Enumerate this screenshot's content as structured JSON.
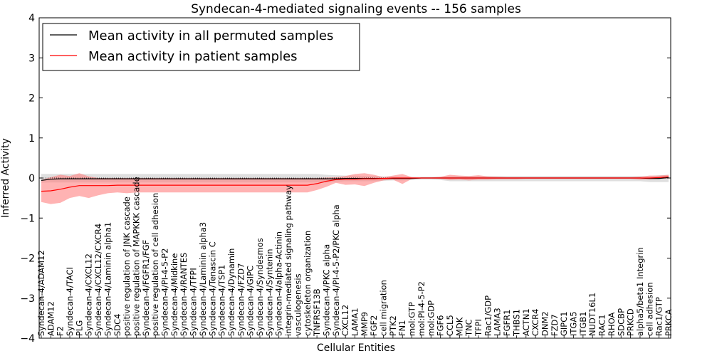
{
  "chart_data": {
    "type": "line",
    "title": "Syndecan-4-mediated signaling events -- 156 samples",
    "xlabel": "Cellular Entities",
    "ylabel": "Inferred Activity",
    "ylim": [
      -4,
      4
    ],
    "yticks": [
      "−4",
      "−3",
      "−2",
      "−1",
      "0",
      "1",
      "2",
      "3",
      "4"
    ],
    "ytick_values": [
      -4,
      -3,
      -2,
      -1,
      0,
      1,
      2,
      3,
      4
    ],
    "legend": {
      "placement": "top-left",
      "entries": [
        {
          "label": "Mean activity in all permuted samples",
          "color": "#000000"
        },
        {
          "label": "Mean activity in patient samples",
          "color": "#ff0000"
        }
      ]
    },
    "categories": [
      "Syndecan-4/ADAM12",
      "ADAM12",
      "F2",
      "Syndecan-4/TACI",
      "PLG",
      "Syndecan-4/CXCL12",
      "Syndecan-4/CXCL12/CXCR4",
      "Syndecan-4/Laminin alpha1",
      "SDC4",
      "positive regulation of JNK cascade",
      "positive regulation of MAPKKK cascade",
      "Syndecan-4/FGFR1/FGF",
      "positive regulation of cell adhesion",
      "Syndecan-4/PI-4-5-P2",
      "Syndecan-4/Midkine",
      "Syndecan-4/RANTES",
      "Syndecan-4/TFPI",
      "Syndecan-4/Laminin alpha3",
      "Syndecan-4/Tenascin C",
      "Syndecan-4/TSP1",
      "Syndecan-4/Dynamin",
      "Syndecan-4/FZD7",
      "Syndecan-4/GIPC",
      "Syndecan-4/Syndesmos",
      "Syndecan-4/Syntenin",
      "Syndecan-4/alpha-Actinin",
      "integrin-mediated signaling pathway",
      "vasculogenesis",
      "cytoskeleton organization",
      "TNFRSF13B",
      "Syndecan-4/PKC alpha",
      "Syndecan-4/PI-4-5-P2/PKC alpha",
      "CXCL12",
      "LAMA1",
      "MMP9",
      "FGF2",
      "cell migration",
      "PTK2",
      "FN1",
      "mol:GTP",
      "mol:PI-4-5-P2",
      "mol:GDP",
      "FGF6",
      "CCL5",
      "MDK",
      "TNC",
      "TFPI",
      "Rac1/GDP",
      "LAMA3",
      "FGFR1",
      "THBS1",
      "ACTN1",
      "CXCR4",
      "DNM2",
      "FZD7",
      "GIPC1",
      "ITGA5",
      "ITGB1",
      "NUDT16L1",
      "RAC1",
      "RHOA",
      "SDCBP",
      "PRKCD",
      "alpha5/beta1 Integrin",
      "cell adhesion",
      "Rac1/GTP",
      "PRKCA"
    ],
    "series": [
      {
        "name": "Mean activity in patient samples",
        "color": "#ff0000",
        "values": [
          -0.33,
          -0.32,
          -0.28,
          -0.23,
          -0.19,
          -0.19,
          -0.19,
          -0.19,
          -0.18,
          -0.18,
          -0.18,
          -0.18,
          -0.18,
          -0.18,
          -0.18,
          -0.18,
          -0.18,
          -0.18,
          -0.18,
          -0.18,
          -0.18,
          -0.18,
          -0.18,
          -0.18,
          -0.18,
          -0.18,
          -0.18,
          -0.18,
          -0.18,
          -0.14,
          -0.08,
          -0.04,
          -0.03,
          -0.03,
          -0.02,
          -0.02,
          -0.01,
          0,
          0,
          0,
          0,
          0,
          0,
          0,
          0,
          0,
          0,
          0,
          0,
          0,
          0,
          0,
          0,
          0,
          0,
          0,
          0,
          0,
          0,
          0,
          0,
          0,
          0,
          0,
          0,
          0.01,
          0.03
        ],
        "lower": [
          -0.6,
          -0.65,
          -0.62,
          -0.5,
          -0.45,
          -0.5,
          -0.43,
          -0.38,
          -0.36,
          -0.38,
          -0.36,
          -0.36,
          -0.36,
          -0.36,
          -0.36,
          -0.36,
          -0.36,
          -0.36,
          -0.36,
          -0.36,
          -0.36,
          -0.36,
          -0.36,
          -0.36,
          -0.36,
          -0.36,
          -0.36,
          -0.36,
          -0.36,
          -0.3,
          -0.22,
          -0.12,
          -0.17,
          -0.16,
          -0.2,
          -0.12,
          -0.06,
          -0.04,
          -0.15,
          -0.02,
          -0.01,
          -0.01,
          -0.02,
          -0.05,
          -0.04,
          -0.06,
          -0.04,
          -0.04,
          -0.03,
          -0.03,
          -0.03,
          -0.02,
          -0.02,
          -0.02,
          -0.02,
          -0.02,
          -0.02,
          -0.02,
          -0.02,
          -0.02,
          -0.02,
          -0.02,
          -0.02,
          -0.04,
          -0.03,
          -0.02,
          -0.01
        ],
        "upper": [
          -0.05,
          0.02,
          0.08,
          0.05,
          0.12,
          0.04,
          0.0,
          0.0,
          0.0,
          0.0,
          0.0,
          0.0,
          0.0,
          0.0,
          0.0,
          0.0,
          0.0,
          0.0,
          0.0,
          0.0,
          0.0,
          0.0,
          0.0,
          0.0,
          0.0,
          0.0,
          0.0,
          0.0,
          0.0,
          0.0,
          0.01,
          0.02,
          0.05,
          0.1,
          0.12,
          0.08,
          0.02,
          0.06,
          0.1,
          0.02,
          0.01,
          0.01,
          0.03,
          0.08,
          0.06,
          0.05,
          0.07,
          0.04,
          0.03,
          0.02,
          0.02,
          0.02,
          0.02,
          0.02,
          0.02,
          0.02,
          0.02,
          0.02,
          0.02,
          0.02,
          0.02,
          0.02,
          0.02,
          0.03,
          0.06,
          0.06,
          0.08
        ]
      },
      {
        "name": "Mean activity in all permuted samples",
        "color": "#000000",
        "values": [
          -0.06,
          -0.03,
          -0.02,
          -0.02,
          -0.02,
          -0.02,
          -0.02,
          -0.02,
          -0.02,
          -0.02,
          -0.02,
          -0.02,
          -0.02,
          -0.02,
          -0.02,
          -0.02,
          -0.02,
          -0.02,
          -0.02,
          -0.02,
          -0.02,
          -0.02,
          -0.02,
          -0.02,
          -0.02,
          -0.02,
          -0.02,
          -0.02,
          -0.02,
          -0.02,
          -0.02,
          -0.02,
          -0.01,
          -0.01,
          -0.01,
          -0.01,
          -0.01,
          -0.01,
          -0.01,
          -0.01,
          0,
          0,
          0,
          0,
          0,
          0,
          0,
          0,
          0,
          0,
          0,
          0,
          0,
          0,
          0,
          0,
          0,
          0,
          0,
          0,
          0,
          0,
          0,
          0,
          -0.01,
          -0.01,
          0.01
        ],
        "lower": [
          -0.12,
          -0.11,
          -0.11,
          -0.11,
          -0.11,
          -0.11,
          -0.11,
          -0.11,
          -0.11,
          -0.11,
          -0.11,
          -0.11,
          -0.11,
          -0.11,
          -0.11,
          -0.11,
          -0.11,
          -0.11,
          -0.11,
          -0.11,
          -0.11,
          -0.11,
          -0.11,
          -0.11,
          -0.11,
          -0.11,
          -0.11,
          -0.11,
          -0.11,
          -0.11,
          -0.11,
          -0.1,
          -0.08,
          -0.08,
          -0.08,
          -0.08,
          -0.07,
          -0.06,
          -0.06,
          -0.05,
          -0.04,
          -0.04,
          -0.05,
          -0.08,
          -0.08,
          -0.08,
          -0.08,
          -0.08,
          -0.08,
          -0.08,
          -0.08,
          -0.08,
          -0.08,
          -0.08,
          -0.08,
          -0.08,
          -0.08,
          -0.08,
          -0.08,
          -0.08,
          -0.08,
          -0.08,
          -0.08,
          -0.08,
          -0.1,
          -0.1,
          -0.1
        ],
        "upper": [
          0.1,
          0.1,
          0.1,
          0.1,
          0.1,
          0.1,
          0.1,
          0.1,
          0.1,
          0.1,
          0.1,
          0.1,
          0.1,
          0.1,
          0.1,
          0.1,
          0.1,
          0.1,
          0.1,
          0.1,
          0.1,
          0.1,
          0.1,
          0.1,
          0.1,
          0.1,
          0.1,
          0.1,
          0.1,
          0.1,
          0.08,
          0.07,
          0.06,
          0.06,
          0.05,
          0.05,
          0.04,
          0.04,
          0.03,
          0.03,
          0.03,
          0.03,
          0.03,
          0.04,
          0.05,
          0.05,
          0.05,
          0.05,
          0.05,
          0.05,
          0.05,
          0.05,
          0.05,
          0.05,
          0.05,
          0.05,
          0.05,
          0.05,
          0.05,
          0.05,
          0.05,
          0.05,
          0.05,
          0.05,
          0.05,
          0.07,
          0.08
        ]
      }
    ],
    "band_colors": {
      "permuted": "#d9d9d9",
      "patient": "#ff8080"
    },
    "zero_line": {
      "style": "dotted",
      "color": "#000000"
    }
  }
}
